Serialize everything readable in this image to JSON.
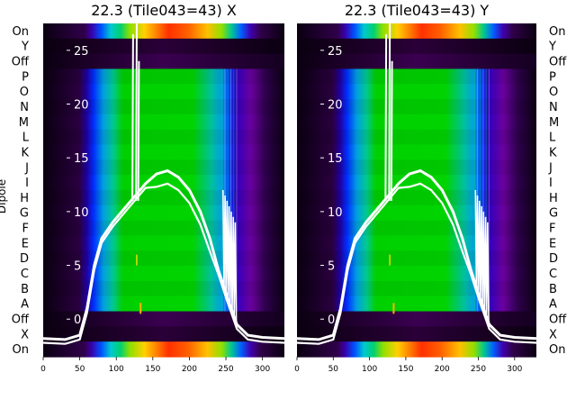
{
  "chart_data": [
    {
      "type": "heatmap",
      "title": "22.3 (Tile043=43) X",
      "ylabel": "Dipole",
      "rows": [
        "On",
        "Y",
        "Off",
        "P",
        "O",
        "N",
        "M",
        "L",
        "K",
        "J",
        "I",
        "H",
        "G",
        "F",
        "E",
        "D",
        "C",
        "B",
        "A",
        "Off",
        "X",
        "On"
      ],
      "x_ticks": [
        0,
        50,
        100,
        150,
        200,
        250,
        300
      ],
      "xlim": [
        0,
        330
      ],
      "overlay_ticks": [
        0,
        5,
        10,
        15,
        20,
        25
      ],
      "overlay_ylim": [
        -3.5,
        27.5
      ],
      "colormap": "spectral",
      "grid": false
    },
    {
      "type": "heatmap",
      "title": "22.3 (Tile043=43) Y",
      "ylabel": "",
      "rows": [
        "On",
        "Y",
        "Off",
        "P",
        "O",
        "N",
        "M",
        "L",
        "K",
        "J",
        "I",
        "H",
        "G",
        "F",
        "E",
        "D",
        "C",
        "B",
        "A",
        "Off",
        "X",
        "On"
      ],
      "x_ticks": [
        0,
        50,
        100,
        150,
        200,
        250,
        300
      ],
      "xlim": [
        0,
        330
      ],
      "overlay_ticks": [
        0,
        5,
        10,
        15,
        20,
        25
      ],
      "overlay_ylim": [
        -3.5,
        27.5
      ],
      "colormap": "spectral",
      "grid": false
    }
  ]
}
